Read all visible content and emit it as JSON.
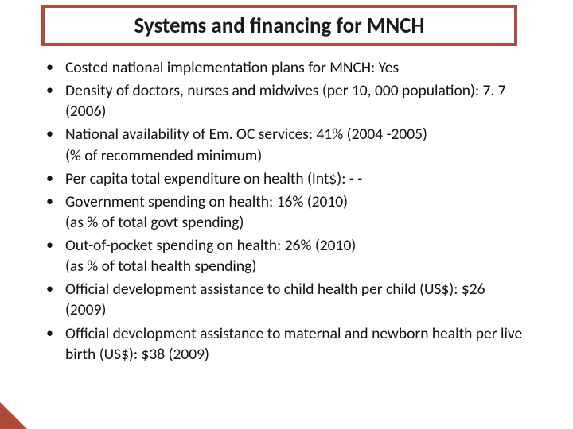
{
  "colors": {
    "accent": "#b04a3c",
    "background": "#ffffff",
    "text": "#111111"
  },
  "title": "Systems and financing for MNCH",
  "bullets": [
    {
      "line1": "Costed national implementation plans for MNCH: Yes",
      "line2": ""
    },
    {
      "line1": "Density of doctors, nurses and midwives (per 10, 000 population):   7. 7 (2006)",
      "line2": ""
    },
    {
      "line1": "National availability of Em. OC services:  41%  (2004 -2005)",
      "line2": " (% of recommended minimum)"
    },
    {
      "line1": "Per capita total expenditure on health (Int$):  - -",
      "line2": ""
    },
    {
      "line1": "Government spending on health:   16% (2010)",
      "line2": "(as % of total govt spending)"
    },
    {
      "line1": "Out-of-pocket spending on health:   26% (2010)",
      "line2": "(as % of total health spending)"
    },
    {
      "line1": "Official development assistance to child health per child (US$):   $26 (2009)",
      "line2": ""
    },
    {
      "line1": "Official development assistance to maternal and newborn health per live birth (US$):   $38 (2009)",
      "line2": ""
    }
  ]
}
